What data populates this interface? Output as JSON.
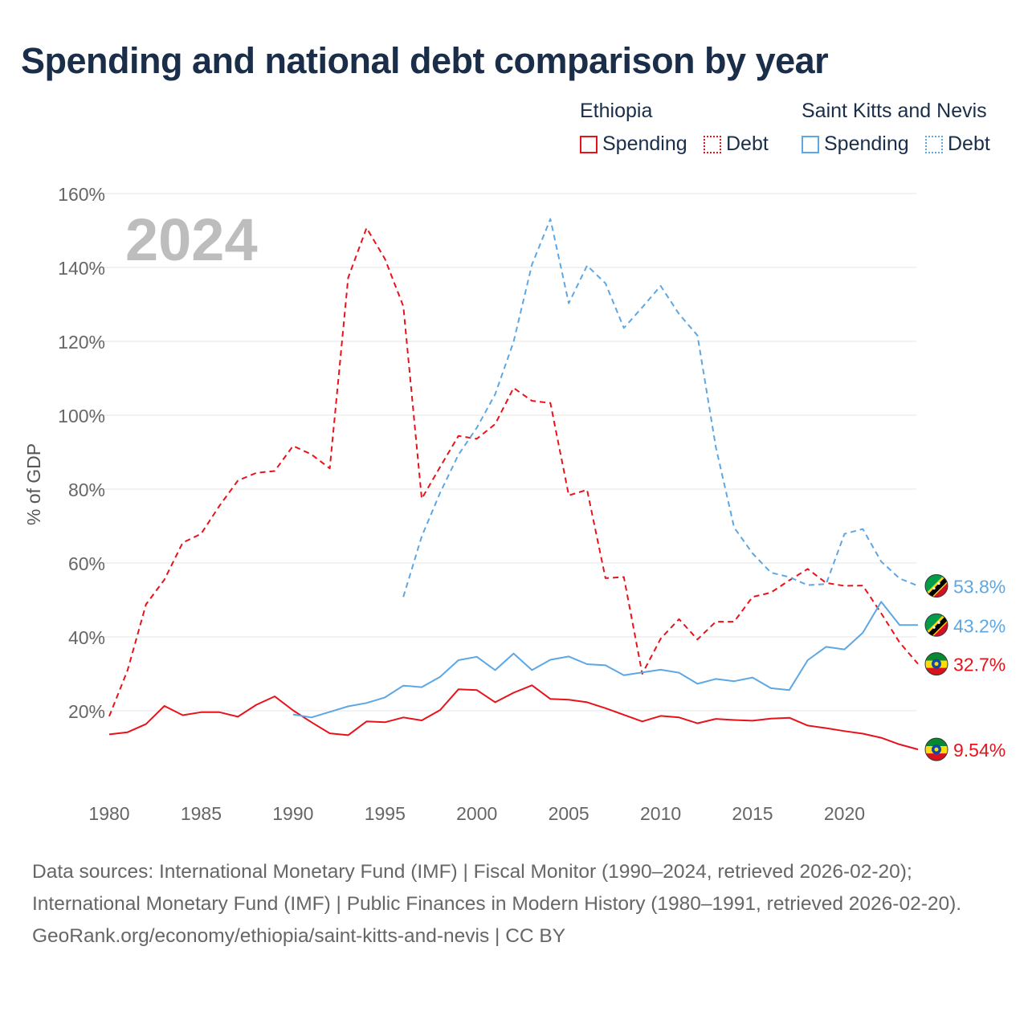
{
  "title": "Spending and national debt comparison by year",
  "legend": {
    "groups": [
      {
        "name": "Ethiopia",
        "color": "#e8121b",
        "items": [
          {
            "label": "Spending",
            "style": "solid"
          },
          {
            "label": "Debt",
            "style": "dotted"
          }
        ]
      },
      {
        "name": "Saint Kitts and Nevis",
        "color": "#5ca7e4",
        "items": [
          {
            "label": "Spending",
            "style": "solid"
          },
          {
            "label": "Debt",
            "style": "dotted"
          }
        ]
      }
    ]
  },
  "chart_data": {
    "type": "line",
    "title": "Spending and national debt comparison by year",
    "year_label": "2024",
    "ylabel": "% of GDP",
    "xlabel": "",
    "xlim": [
      1980,
      2024
    ],
    "ylim": [
      0,
      160
    ],
    "x_ticks": [
      1980,
      1985,
      1990,
      1995,
      2000,
      2005,
      2010,
      2015,
      2020
    ],
    "y_ticks": [
      20,
      40,
      60,
      80,
      100,
      120,
      140,
      160
    ],
    "y_tick_labels": [
      "20%",
      "40%",
      "60%",
      "80%",
      "100%",
      "120%",
      "140%",
      "160%"
    ],
    "grid": true,
    "series": [
      {
        "name": "Ethiopia Spending",
        "country": "Ethiopia",
        "style": "solid",
        "color": "#e8121b",
        "end_label": "9.54%",
        "flag": "ethiopia",
        "x": [
          1980,
          1981,
          1982,
          1983,
          1984,
          1985,
          1986,
          1987,
          1988,
          1989,
          1990,
          1991,
          1992,
          1993,
          1994,
          1995,
          1996,
          1997,
          1998,
          1999,
          2000,
          2001,
          2002,
          2003,
          2004,
          2005,
          2006,
          2007,
          2008,
          2009,
          2010,
          2011,
          2012,
          2013,
          2014,
          2015,
          2016,
          2017,
          2018,
          2019,
          2020,
          2021,
          2022,
          2023,
          2024
        ],
        "values": [
          13.6,
          14.2,
          16.4,
          21.3,
          18.8,
          19.6,
          19.6,
          18.4,
          21.6,
          23.9,
          20.1,
          16.9,
          13.9,
          13.4,
          17.1,
          16.9,
          18.2,
          17.4,
          20.2,
          25.8,
          25.6,
          22.3,
          24.9,
          26.9,
          23.2,
          23.0,
          22.3,
          20.7,
          18.9,
          17.1,
          18.6,
          18.2,
          16.6,
          17.8,
          17.5,
          17.3,
          17.9,
          18.1,
          16.0,
          15.3,
          14.5,
          13.8,
          12.7,
          10.9,
          9.54
        ]
      },
      {
        "name": "Ethiopia Debt",
        "country": "Ethiopia",
        "style": "dashed",
        "color": "#e8121b",
        "end_label": "32.7%",
        "flag": "ethiopia",
        "x": [
          1980,
          1981,
          1982,
          1983,
          1984,
          1985,
          1986,
          1987,
          1988,
          1989,
          1990,
          1991,
          1992,
          1993,
          1994,
          1995,
          1996,
          1997,
          1998,
          1999,
          2000,
          2001,
          2002,
          2003,
          2004,
          2005,
          2006,
          2007,
          2008,
          2009,
          2010,
          2011,
          2012,
          2013,
          2014,
          2015,
          2016,
          2017,
          2018,
          2019,
          2020,
          2021,
          2022,
          2023,
          2024
        ],
        "values": [
          18.5,
          31.0,
          48.8,
          55.5,
          65.5,
          67.9,
          75.5,
          82.3,
          84.4,
          84.9,
          91.7,
          89.4,
          85.6,
          137.2,
          150.7,
          142.3,
          129.5,
          77.4,
          86.0,
          94.4,
          93.6,
          97.6,
          107.4,
          103.9,
          103.3,
          78.3,
          79.8,
          55.9,
          56.2,
          30.0,
          39.5,
          44.8,
          39.3,
          44.1,
          44.1,
          50.8,
          52.0,
          55.3,
          58.4,
          54.6,
          53.8,
          53.9,
          46.4,
          38.5,
          32.7
        ]
      },
      {
        "name": "Saint Kitts and Nevis Spending",
        "country": "Saint Kitts and Nevis",
        "style": "solid",
        "color": "#5ca7e4",
        "end_label": "43.2%",
        "flag": "saint-kitts-and-nevis",
        "x": [
          1990,
          1991,
          1992,
          1993,
          1994,
          1995,
          1996,
          1997,
          1998,
          1999,
          2000,
          2001,
          2002,
          2003,
          2004,
          2005,
          2006,
          2007,
          2008,
          2009,
          2010,
          2011,
          2012,
          2013,
          2014,
          2015,
          2016,
          2017,
          2018,
          2019,
          2020,
          2021,
          2022,
          2023,
          2024
        ],
        "values": [
          19.0,
          18.2,
          19.7,
          21.2,
          22.1,
          23.6,
          26.8,
          26.4,
          29.2,
          33.7,
          34.6,
          31.0,
          35.5,
          31.0,
          33.8,
          34.7,
          32.6,
          32.3,
          29.6,
          30.4,
          31.1,
          30.3,
          27.3,
          28.6,
          28.0,
          29.0,
          26.1,
          25.6,
          33.7,
          37.3,
          36.6,
          41.1,
          49.5,
          43.2,
          43.2
        ]
      },
      {
        "name": "Saint Kitts and Nevis Debt",
        "country": "Saint Kitts and Nevis",
        "style": "dashed",
        "color": "#5ca7e4",
        "end_label": "53.8%",
        "flag": "saint-kitts-and-nevis",
        "x": [
          1996,
          1997,
          1998,
          1999,
          2000,
          2001,
          2002,
          2003,
          2004,
          2005,
          2006,
          2007,
          2008,
          2009,
          2010,
          2011,
          2012,
          2013,
          2014,
          2015,
          2016,
          2017,
          2018,
          2019,
          2020,
          2021,
          2022,
          2023,
          2024
        ],
        "values": [
          50.8,
          67.2,
          79.0,
          89.3,
          96.6,
          105.7,
          119.9,
          140.8,
          153.1,
          130.3,
          140.5,
          135.7,
          123.6,
          129.2,
          135.0,
          127.4,
          121.6,
          91.4,
          69.6,
          62.6,
          57.4,
          56.2,
          54.0,
          54.3,
          67.9,
          69.2,
          60.4,
          55.8,
          53.8
        ]
      }
    ]
  },
  "footer": {
    "source_line": "Data sources: International Monetary Fund (IMF) | Fiscal Monitor (1990–2024, retrieved 2026-02-20); International Monetary Fund (IMF) | Public Finances in Modern History (1980–1991, retrieved 2026-02-20).",
    "credit_line": "GeoRank.org/economy/ethiopia/saint-kitts-and-nevis | CC BY"
  }
}
